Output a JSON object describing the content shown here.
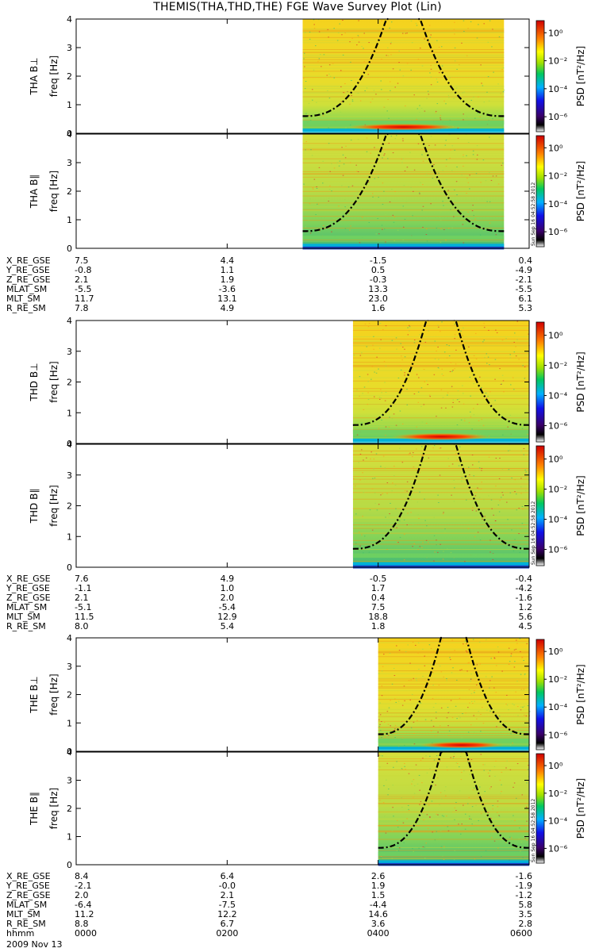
{
  "title": "THEMIS(THA,THD,THE) FGE Wave Survey Plot (Lin)",
  "chart_data": {
    "type": "heatmap",
    "x_unit": "hhmm",
    "x_range": [
      "0000",
      "0600"
    ],
    "x_ticks": [
      "0000",
      "0200",
      "0400",
      "0600"
    ],
    "date_label": "2009 Nov 13",
    "colorbar": {
      "label": "PSD [nT²/Hz]",
      "tick_labels": [
        "10⁰",
        "10⁻²",
        "10⁻⁴",
        "10⁻⁶"
      ],
      "stamp": "Sun Sep 16 04:52:58 2012"
    },
    "ylabel": "freq [Hz]",
    "y_range": [
      0,
      4
    ],
    "y_ticks": [
      "0",
      "1",
      "2",
      "3",
      "4"
    ],
    "panels": [
      {
        "name": "THA B⊥",
        "probe": "THA",
        "component": "perp",
        "data_start_hhmm": "0300",
        "data_end_hhmm": "0540"
      },
      {
        "name": "THA B∥",
        "probe": "THA",
        "component": "par",
        "data_start_hhmm": "0300",
        "data_end_hhmm": "0540"
      },
      {
        "name": "THD B⊥",
        "probe": "THD",
        "component": "perp",
        "data_start_hhmm": "0340",
        "data_end_hhmm": "0600"
      },
      {
        "name": "THD B∥",
        "probe": "THD",
        "component": "par",
        "data_start_hhmm": "0340",
        "data_end_hhmm": "0600"
      },
      {
        "name": "THE B⊥",
        "probe": "THE",
        "component": "perp",
        "data_start_hhmm": "0400",
        "data_end_hhmm": "0600"
      },
      {
        "name": "THE B∥",
        "probe": "THE",
        "component": "par",
        "data_start_hhmm": "0400",
        "data_end_hhmm": "0600"
      }
    ],
    "ephemeris": [
      {
        "probe": "THA",
        "labels": [
          "X_RE_GSE",
          "Y_RE_GSE",
          "Z_RE_GSE",
          "MLAT_SM",
          "MLT_SM",
          "R_RE_SM"
        ],
        "columns": [
          [
            "7.5",
            "-0.8",
            "2.1",
            "-5.5",
            "11.7",
            "7.8"
          ],
          [
            "4.4",
            "1.1",
            "1.9",
            "-3.6",
            "13.1",
            "4.9"
          ],
          [
            "-1.5",
            "0.5",
            "-0.3",
            "13.3",
            "23.0",
            "1.6"
          ],
          [
            "0.4",
            "-4.9",
            "-2.1",
            "-5.5",
            "6.1",
            "5.3"
          ]
        ]
      },
      {
        "probe": "THD",
        "labels": [
          "X_RE_GSE",
          "Y_RE_GSE",
          "Z_RE_GSE",
          "MLAT_SM",
          "MLT_SM",
          "R_RE_SM"
        ],
        "columns": [
          [
            "7.6",
            "-1.1",
            "2.1",
            "-5.1",
            "11.5",
            "8.0"
          ],
          [
            "4.9",
            "1.0",
            "2.0",
            "-5.4",
            "12.9",
            "5.4"
          ],
          [
            "-0.5",
            "1.7",
            "0.4",
            "7.5",
            "18.8",
            "1.8"
          ],
          [
            "-0.4",
            "-4.2",
            "-1.6",
            "1.2",
            "5.6",
            "4.5"
          ]
        ]
      },
      {
        "probe": "THE",
        "labels": [
          "X_RE_GSE",
          "Y_RE_GSE",
          "Z_RE_GSE",
          "MLAT_SM",
          "MLT_SM",
          "R_RE_SM",
          "hhmm"
        ],
        "columns": [
          [
            "8.4",
            "-2.1",
            "2.0",
            "-6.4",
            "11.2",
            "8.8",
            "0000"
          ],
          [
            "6.4",
            "-0.0",
            "2.1",
            "-7.5",
            "12.2",
            "6.7",
            "0200"
          ],
          [
            "2.6",
            "1.9",
            "1.5",
            "-4.4",
            "14.6",
            "3.6",
            "0400"
          ],
          [
            "-1.6",
            "-1.9",
            "-1.2",
            "5.8",
            "3.5",
            "2.8",
            "0600"
          ]
        ]
      }
    ],
    "grid": false
  }
}
